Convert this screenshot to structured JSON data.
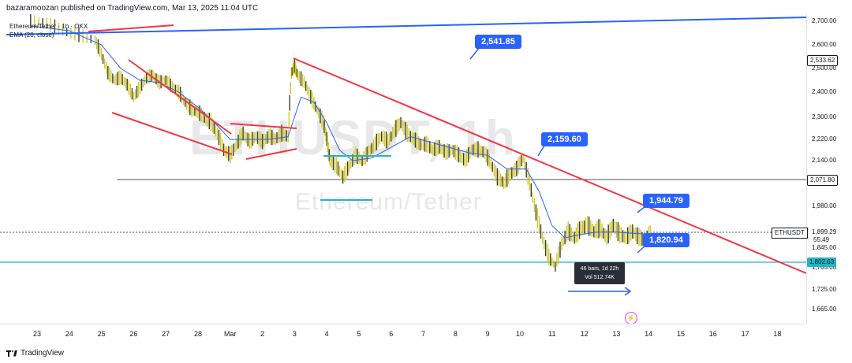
{
  "header": {
    "text": "bazaramoozan published on TradingView.com, Mar 13, 2025 11:04 UTC"
  },
  "legend": {
    "line1": "Ethereum/Tether · 1h · OKX",
    "line2": "EMA (20, close)"
  },
  "watermark": {
    "symbol": "ETHUSDT, 1h",
    "name": "Ethereum/Tether"
  },
  "callouts": {
    "c1": "2,541.85",
    "c2": "2,159.60",
    "c3": "1,944.79",
    "c4": "1,820.94"
  },
  "info_box": {
    "line1": "46 bars, 1d 22h",
    "line2": "Vol 512.74K"
  },
  "price_tags": {
    "resistance": "2,533.62",
    "support_mid": "2,071.80",
    "last_symbol": "ETHUSDT",
    "last_price": "1,899.29",
    "countdown": "55:49",
    "support_low": "1,802.63"
  },
  "footer": {
    "brand": "TradingView"
  },
  "colors": {
    "up": "#26a69a",
    "bar": "#d4c82a",
    "ema": "#2962ff",
    "trend_red": "#f23645",
    "cyan": "#22b5c5",
    "callout": "#2962ff"
  },
  "chart_data": {
    "type": "line",
    "title": "",
    "y_ticks": [
      "2,700.00",
      "2,600.00",
      "2,500.00",
      "2,400.00",
      "2,300.00",
      "2,220.00",
      "2,140.00",
      "1,980.00",
      "1,845.00",
      "1,765.00",
      "1,725.00",
      "1,665.00"
    ],
    "x_ticks": [
      "23",
      "24",
      "25",
      "26",
      "27",
      "28",
      "Mar",
      "2",
      "3",
      "4",
      "5",
      "6",
      "7",
      "8",
      "9",
      "10",
      "11",
      "12",
      "13",
      "14",
      "15",
      "16",
      "17",
      "18"
    ],
    "ylim": [
      1640,
      2720
    ],
    "price_series": [
      [
        -0.2,
        2700
      ],
      [
        0.3,
        2690
      ],
      [
        0.8,
        2660
      ],
      [
        1.3,
        2640
      ],
      [
        1.8,
        2620
      ],
      [
        2.0,
        2560
      ],
      [
        2.2,
        2480
      ],
      [
        2.4,
        2450
      ],
      [
        2.6,
        2460
      ],
      [
        2.8,
        2430
      ],
      [
        3.0,
        2380
      ],
      [
        3.2,
        2420
      ],
      [
        3.4,
        2460
      ],
      [
        3.6,
        2470
      ],
      [
        3.8,
        2440
      ],
      [
        4.0,
        2450
      ],
      [
        4.2,
        2420
      ],
      [
        4.4,
        2400
      ],
      [
        4.6,
        2360
      ],
      [
        4.8,
        2330
      ],
      [
        5.0,
        2320
      ],
      [
        5.2,
        2300
      ],
      [
        5.4,
        2280
      ],
      [
        5.6,
        2240
      ],
      [
        5.8,
        2180
      ],
      [
        6.0,
        2160
      ],
      [
        6.2,
        2200
      ],
      [
        6.4,
        2240
      ],
      [
        6.6,
        2210
      ],
      [
        6.8,
        2230
      ],
      [
        7.0,
        2210
      ],
      [
        7.2,
        2230
      ],
      [
        7.4,
        2220
      ],
      [
        7.6,
        2240
      ],
      [
        7.8,
        2230
      ],
      [
        7.9,
        2480
      ],
      [
        8.0,
        2510
      ],
      [
        8.1,
        2470
      ],
      [
        8.3,
        2440
      ],
      [
        8.5,
        2380
      ],
      [
        8.7,
        2330
      ],
      [
        8.9,
        2280
      ],
      [
        9.0,
        2220
      ],
      [
        9.1,
        2140
      ],
      [
        9.3,
        2120
      ],
      [
        9.5,
        2080
      ],
      [
        9.7,
        2120
      ],
      [
        9.9,
        2160
      ],
      [
        10.1,
        2140
      ],
      [
        10.3,
        2170
      ],
      [
        10.5,
        2200
      ],
      [
        10.7,
        2230
      ],
      [
        10.9,
        2210
      ],
      [
        11.1,
        2250
      ],
      [
        11.3,
        2280
      ],
      [
        11.5,
        2240
      ],
      [
        11.7,
        2220
      ],
      [
        11.9,
        2200
      ],
      [
        12.1,
        2200
      ],
      [
        12.3,
        2180
      ],
      [
        12.5,
        2190
      ],
      [
        12.7,
        2170
      ],
      [
        12.9,
        2180
      ],
      [
        13.1,
        2160
      ],
      [
        13.3,
        2140
      ],
      [
        13.5,
        2180
      ],
      [
        13.7,
        2180
      ],
      [
        13.9,
        2170
      ],
      [
        14.1,
        2130
      ],
      [
        14.3,
        2080
      ],
      [
        14.5,
        2060
      ],
      [
        14.7,
        2090
      ],
      [
        14.9,
        2110
      ],
      [
        15.1,
        2150
      ],
      [
        15.3,
        2060
      ],
      [
        15.5,
        1960
      ],
      [
        15.7,
        1880
      ],
      [
        15.9,
        1810
      ],
      [
        16.1,
        1780
      ],
      [
        16.3,
        1860
      ],
      [
        16.5,
        1900
      ],
      [
        16.7,
        1880
      ],
      [
        16.9,
        1910
      ],
      [
        17.1,
        1920
      ],
      [
        17.3,
        1900
      ],
      [
        17.5,
        1910
      ],
      [
        17.7,
        1880
      ],
      [
        17.9,
        1920
      ],
      [
        18.1,
        1890
      ],
      [
        18.3,
        1880
      ],
      [
        18.5,
        1900
      ],
      [
        18.7,
        1880
      ],
      [
        18.9,
        1870
      ],
      [
        19.1,
        1899.29
      ]
    ],
    "ema_series": [
      [
        -0.2,
        2680
      ],
      [
        1.0,
        2660
      ],
      [
        2.0,
        2600
      ],
      [
        2.6,
        2500
      ],
      [
        3.2,
        2450
      ],
      [
        3.8,
        2440
      ],
      [
        4.4,
        2400
      ],
      [
        5.0,
        2340
      ],
      [
        5.6,
        2270
      ],
      [
        6.0,
        2220
      ],
      [
        6.6,
        2220
      ],
      [
        7.2,
        2220
      ],
      [
        7.8,
        2230
      ],
      [
        8.2,
        2380
      ],
      [
        8.6,
        2360
      ],
      [
        9.0,
        2280
      ],
      [
        9.4,
        2180
      ],
      [
        9.8,
        2140
      ],
      [
        10.4,
        2150
      ],
      [
        11.0,
        2190
      ],
      [
        11.6,
        2230
      ],
      [
        12.2,
        2210
      ],
      [
        12.8,
        2190
      ],
      [
        13.4,
        2170
      ],
      [
        14.0,
        2160
      ],
      [
        14.6,
        2110
      ],
      [
        15.2,
        2110
      ],
      [
        15.6,
        2030
      ],
      [
        16.0,
        1920
      ],
      [
        16.4,
        1880
      ],
      [
        16.8,
        1890
      ],
      [
        17.4,
        1900
      ],
      [
        18.0,
        1900
      ],
      [
        18.6,
        1895
      ],
      [
        19.1,
        1893
      ]
    ]
  }
}
